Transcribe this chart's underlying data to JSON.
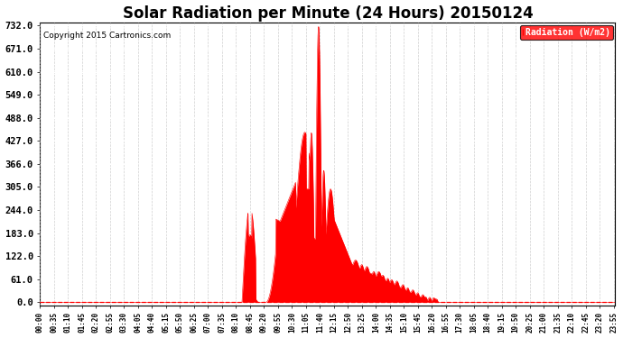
{
  "title": "Solar Radiation per Minute (24 Hours) 20150124",
  "copyright_text": "Copyright 2015 Cartronics.com",
  "legend_label": "Radiation (W/m2)",
  "yticks": [
    0.0,
    61.0,
    122.0,
    183.0,
    244.0,
    305.0,
    366.0,
    427.0,
    488.0,
    549.0,
    610.0,
    671.0,
    732.0
  ],
  "ymax": 732.0,
  "ymin": 0.0,
  "fill_color": "#FF0000",
  "line_color": "#FF0000",
  "background_color": "#FFFFFF",
  "grid_color_h": "#FFFFFF",
  "grid_color_v": "#BBBBBB",
  "title_fontsize": 12,
  "axis_color": "#000000",
  "legend_bg": "#FF0000",
  "legend_text_color": "#FFFFFF",
  "tick_label_fontsize": 6,
  "tick_interval_minutes": 35
}
